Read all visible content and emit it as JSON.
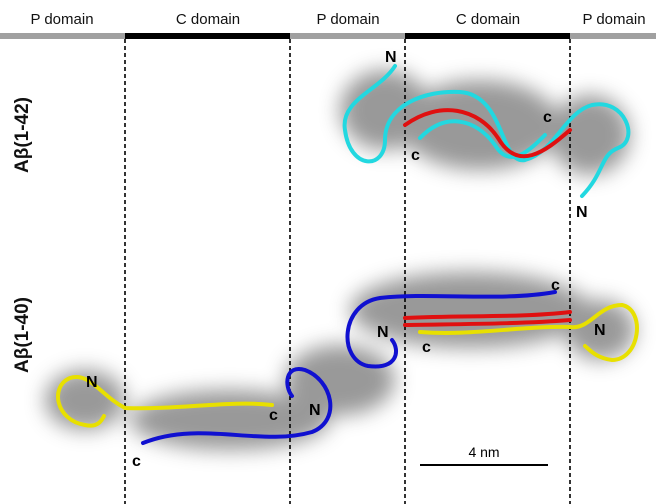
{
  "header": {
    "domains": [
      "P domain",
      "C domain",
      "P domain",
      "C domain",
      "P domain"
    ]
  },
  "rows": [
    {
      "label": "Aβ(1-42)",
      "termini": [
        "N",
        "c",
        "c",
        "N"
      ]
    },
    {
      "label": "Aβ(1-40)",
      "termini": [
        "c",
        "N",
        "c",
        "N",
        "N",
        "c",
        "N",
        "c"
      ]
    }
  ],
  "scale_bar": {
    "label": "4 nm"
  }
}
